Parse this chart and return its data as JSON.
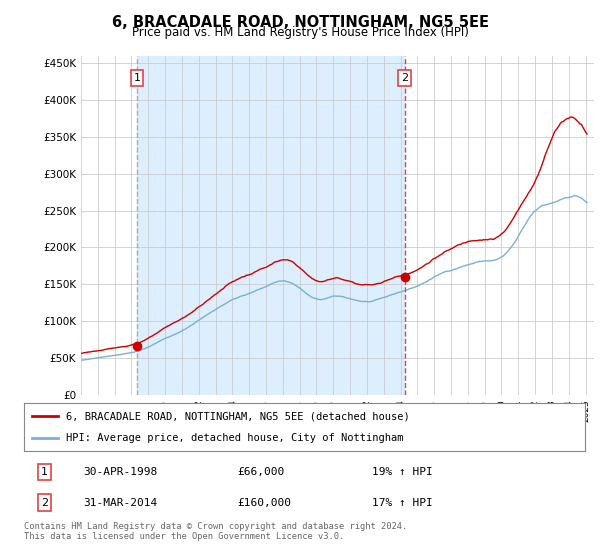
{
  "title": "6, BRACADALE ROAD, NOTTINGHAM, NG5 5EE",
  "subtitle": "Price paid vs. HM Land Registry's House Price Index (HPI)",
  "ylim": [
    0,
    460000
  ],
  "yticks": [
    0,
    50000,
    100000,
    150000,
    200000,
    250000,
    300000,
    350000,
    400000,
    450000
  ],
  "xlim_start": 1995.0,
  "xlim_end": 2025.5,
  "sale1_x": 1998.33,
  "sale1_y": 66000,
  "sale1_label": "1",
  "sale2_x": 2014.25,
  "sale2_y": 160000,
  "sale2_label": "2",
  "vline1_x": 1998.33,
  "vline2_x": 2014.25,
  "legend_line1": "6, BRACADALE ROAD, NOTTINGHAM, NG5 5EE (detached house)",
  "legend_line2": "HPI: Average price, detached house, City of Nottingham",
  "table_row1": [
    "1",
    "30-APR-1998",
    "£66,000",
    "19% ↑ HPI"
  ],
  "table_row2": [
    "2",
    "31-MAR-2014",
    "£160,000",
    "17% ↑ HPI"
  ],
  "footer": "Contains HM Land Registry data © Crown copyright and database right 2024.\nThis data is licensed under the Open Government Licence v3.0.",
  "red_color": "#cc0000",
  "blue_color": "#7ab0d4",
  "vline1_color": "#aaaaaa",
  "vline2_color": "#dd4444",
  "shade_color": "#ddeeff",
  "grid_color": "#cccccc",
  "background_color": "#ffffff"
}
